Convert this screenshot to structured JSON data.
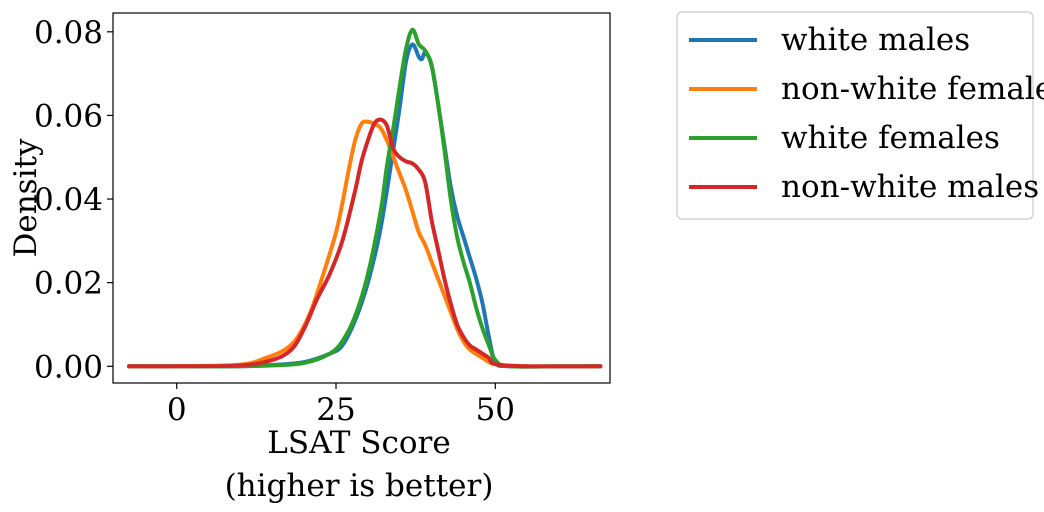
{
  "chart_data": {
    "type": "line",
    "xlabel": [
      "LSAT Score",
      "(higher is better)"
    ],
    "ylabel": "Density",
    "xlim": [
      -10,
      68
    ],
    "ylim": [
      -0.004,
      0.0845
    ],
    "xticks": [
      0,
      25,
      50
    ],
    "xtick_labels": [
      "0",
      "25",
      "50"
    ],
    "yticks": [
      0,
      0.02,
      0.04,
      0.06,
      0.08
    ],
    "ytick_labels": [
      "0.00",
      "0.02",
      "0.04",
      "0.06",
      "0.08"
    ],
    "legend_position": "outside-right-top",
    "series": [
      {
        "name": "white males",
        "color": "#1f77b4",
        "points": [
          [
            -7.5,
            0
          ],
          [
            0,
            0
          ],
          [
            10,
            0
          ],
          [
            15,
            0.0003
          ],
          [
            20,
            0.001
          ],
          [
            24,
            0.003
          ],
          [
            26,
            0.005
          ],
          [
            28,
            0.011
          ],
          [
            30,
            0.02
          ],
          [
            32,
            0.033
          ],
          [
            34,
            0.052
          ],
          [
            35,
            0.062
          ],
          [
            36,
            0.073
          ],
          [
            37,
            0.077
          ],
          [
            38,
            0.074
          ],
          [
            38.5,
            0.0735
          ],
          [
            39,
            0.075
          ],
          [
            40,
            0.072
          ],
          [
            41,
            0.063
          ],
          [
            42,
            0.053
          ],
          [
            43,
            0.043
          ],
          [
            44,
            0.036
          ],
          [
            45,
            0.031
          ],
          [
            46,
            0.026
          ],
          [
            47,
            0.021
          ],
          [
            48,
            0.015
          ],
          [
            49,
            0.007
          ],
          [
            50,
            0.001
          ],
          [
            52,
            0
          ],
          [
            60,
            0
          ],
          [
            66.5,
            0
          ]
        ]
      },
      {
        "name": "non-white females",
        "color": "#ff7f0e",
        "points": [
          [
            -7.5,
            0
          ],
          [
            0,
            0
          ],
          [
            10,
            0.0004
          ],
          [
            14,
            0.002
          ],
          [
            17,
            0.004
          ],
          [
            19,
            0.007
          ],
          [
            21,
            0.013
          ],
          [
            23,
            0.022
          ],
          [
            25,
            0.032
          ],
          [
            26,
            0.039
          ],
          [
            27,
            0.047
          ],
          [
            28,
            0.054
          ],
          [
            29,
            0.058
          ],
          [
            30,
            0.0585
          ],
          [
            31,
            0.058
          ],
          [
            32,
            0.057
          ],
          [
            33,
            0.054
          ],
          [
            34,
            0.05
          ],
          [
            35,
            0.046
          ],
          [
            36,
            0.042
          ],
          [
            37,
            0.037
          ],
          [
            38,
            0.032
          ],
          [
            39,
            0.029
          ],
          [
            40,
            0.025
          ],
          [
            41,
            0.021
          ],
          [
            42,
            0.017
          ],
          [
            43,
            0.013
          ],
          [
            44,
            0.009
          ],
          [
            45,
            0.006
          ],
          [
            46,
            0.004
          ],
          [
            48,
            0.002
          ],
          [
            50,
            0.0005
          ],
          [
            55,
            0
          ],
          [
            66.5,
            0
          ]
        ]
      },
      {
        "name": "white females",
        "color": "#2ca02c",
        "points": [
          [
            -7.5,
            0
          ],
          [
            0,
            0
          ],
          [
            10,
            0
          ],
          [
            15,
            0.0002
          ],
          [
            20,
            0.0008
          ],
          [
            24,
            0.003
          ],
          [
            26,
            0.006
          ],
          [
            28,
            0.012
          ],
          [
            30,
            0.022
          ],
          [
            32,
            0.037
          ],
          [
            33,
            0.048
          ],
          [
            34,
            0.057
          ],
          [
            35,
            0.067
          ],
          [
            36,
            0.076
          ],
          [
            37,
            0.0805
          ],
          [
            38,
            0.077
          ],
          [
            39,
            0.0755
          ],
          [
            40,
            0.072
          ],
          [
            41,
            0.063
          ],
          [
            42,
            0.052
          ],
          [
            43,
            0.04
          ],
          [
            44,
            0.031
          ],
          [
            45,
            0.025
          ],
          [
            46,
            0.02
          ],
          [
            47,
            0.014
          ],
          [
            48,
            0.009
          ],
          [
            49,
            0.005
          ],
          [
            50,
            0.0015
          ],
          [
            52,
            0
          ],
          [
            60,
            0
          ],
          [
            66.5,
            0
          ]
        ]
      },
      {
        "name": "non-white males",
        "color": "#d62728",
        "points": [
          [
            -7.5,
            0
          ],
          [
            0,
            0
          ],
          [
            10,
            0.0002
          ],
          [
            15,
            0.0015
          ],
          [
            18,
            0.004
          ],
          [
            20,
            0.009
          ],
          [
            22,
            0.016
          ],
          [
            24,
            0.022
          ],
          [
            26,
            0.03
          ],
          [
            28,
            0.042
          ],
          [
            29,
            0.049
          ],
          [
            30,
            0.054
          ],
          [
            31,
            0.058
          ],
          [
            32,
            0.059
          ],
          [
            33,
            0.0575
          ],
          [
            34,
            0.052
          ],
          [
            35,
            0.05
          ],
          [
            36,
            0.049
          ],
          [
            37,
            0.0485
          ],
          [
            38,
            0.047
          ],
          [
            39,
            0.044
          ],
          [
            40,
            0.035
          ],
          [
            41,
            0.028
          ],
          [
            42,
            0.021
          ],
          [
            43,
            0.015
          ],
          [
            44,
            0.01
          ],
          [
            45,
            0.007
          ],
          [
            46,
            0.005
          ],
          [
            47,
            0.004
          ],
          [
            48,
            0.003
          ],
          [
            49,
            0.002
          ],
          [
            50,
            0.0005
          ],
          [
            55,
            0
          ],
          [
            66.5,
            0
          ]
        ]
      }
    ]
  }
}
